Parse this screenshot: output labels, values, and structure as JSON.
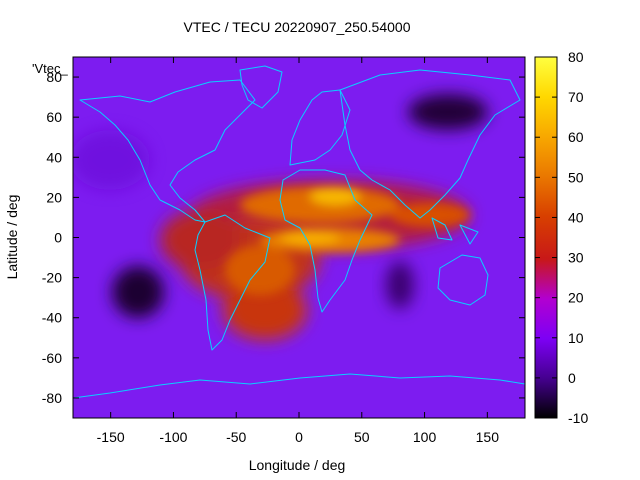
{
  "chart_data": {
    "type": "heatmap",
    "title": "VTEC / TECU 20220907_250.54000",
    "xlabel": "Longitude / deg",
    "ylabel": "Latitude / deg",
    "xlim": [
      -180,
      180
    ],
    "ylim": [
      -90,
      90
    ],
    "xticks": [
      -150,
      -100,
      -50,
      0,
      50,
      100,
      150
    ],
    "yticks": [
      -80,
      -60,
      -40,
      -20,
      0,
      20,
      40,
      60,
      80
    ],
    "colorbar": {
      "range": [
        -10,
        80
      ],
      "ticks": [
        -10,
        0,
        10,
        20,
        30,
        40,
        50,
        60,
        70,
        80
      ]
    },
    "series_label": "'Vtec_",
    "features": [
      {
        "name": "equatorial anomaly",
        "lon": [
          -90,
          150
        ],
        "lat": [
          -40,
          30
        ],
        "peak_value": 60
      },
      {
        "name": "south pacific minimum",
        "lon": -130,
        "lat": -27,
        "value": 0
      },
      {
        "name": "north pacific minimum",
        "lon": 120,
        "lat": 62,
        "value": 0
      },
      {
        "name": "indian ocean minimum",
        "lon": 80,
        "lat": -27,
        "value": 5
      }
    ]
  }
}
